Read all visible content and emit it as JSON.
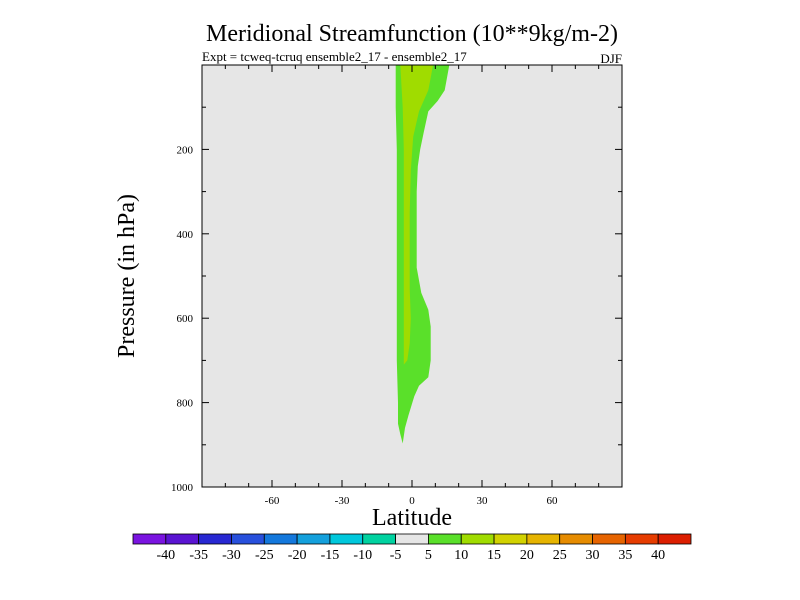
{
  "chart_data": {
    "type": "contour",
    "title": "Meridional Streamfunction (10**9kg/m-2)",
    "subtitle": "Expt = tcweq-tcruq ensemble2_17 - ensemble2_17",
    "season": "DJF",
    "xlabel": "Latitude",
    "ylabel": "Pressure (in hPa)",
    "xlim": [
      -90,
      90
    ],
    "ylim": [
      1000,
      0
    ],
    "x_ticks": [
      -60,
      -30,
      0,
      30,
      60
    ],
    "y_ticks": [
      200,
      400,
      600,
      800,
      1000
    ],
    "background_color": "#e6e6e6",
    "contours": [
      {
        "level_range": [
          5,
          10
        ],
        "color": "#5ae02a",
        "outline": [
          [
            -7,
            0
          ],
          [
            16,
            0
          ],
          [
            15,
            30
          ],
          [
            14,
            60
          ],
          [
            11,
            85
          ],
          [
            7,
            110
          ],
          [
            5,
            160
          ],
          [
            3.5,
            200
          ],
          [
            2.5,
            240
          ],
          [
            2,
            300
          ],
          [
            2,
            400
          ],
          [
            2,
            480
          ],
          [
            4,
            540
          ],
          [
            7,
            580
          ],
          [
            8,
            620
          ],
          [
            8,
            660
          ],
          [
            8,
            700
          ],
          [
            7,
            740
          ],
          [
            3,
            760
          ],
          [
            1,
            785
          ],
          [
            -1.5,
            830
          ],
          [
            -3,
            860
          ],
          [
            -4,
            897
          ],
          [
            -5,
            875
          ],
          [
            -6,
            850
          ],
          [
            -6,
            800
          ],
          [
            -6.5,
            700
          ],
          [
            -6.5,
            600
          ],
          [
            -6.5,
            500
          ],
          [
            -6.5,
            400
          ],
          [
            -6.5,
            300
          ],
          [
            -6.5,
            200
          ],
          [
            -7,
            100
          ]
        ]
      },
      {
        "level_range": [
          10,
          15
        ],
        "color": "#a0dc00",
        "outline": [
          [
            -5,
            0
          ],
          [
            9,
            0
          ],
          [
            8,
            30
          ],
          [
            7,
            60
          ],
          [
            3,
            110
          ],
          [
            0.5,
            170
          ],
          [
            -0.5,
            250
          ],
          [
            -1,
            350
          ],
          [
            -1,
            450
          ],
          [
            -1,
            530
          ],
          [
            -0.5,
            600
          ],
          [
            -1,
            660
          ],
          [
            -2,
            700
          ],
          [
            -3.5,
            710
          ],
          [
            -3.5,
            650
          ],
          [
            -3.5,
            500
          ],
          [
            -3.5,
            300
          ],
          [
            -3.5,
            200
          ],
          [
            -4,
            100
          ]
        ]
      }
    ],
    "colorbar": {
      "labels": [
        "-40",
        "-35",
        "-30",
        "-25",
        "-20",
        "-15",
        "-10",
        "-5",
        "5",
        "10",
        "15",
        "20",
        "25",
        "30",
        "35",
        "40"
      ],
      "colors": [
        "#7a14e0",
        "#5a14d2",
        "#2828d2",
        "#2850dc",
        "#1478dc",
        "#14a0dc",
        "#00c8dc",
        "#00d2a0",
        "#e6e6e6",
        "#5ae02a",
        "#a0dc00",
        "#d2d200",
        "#e6b400",
        "#e68c00",
        "#e66400",
        "#e63c00",
        "#dc1e00"
      ]
    }
  }
}
